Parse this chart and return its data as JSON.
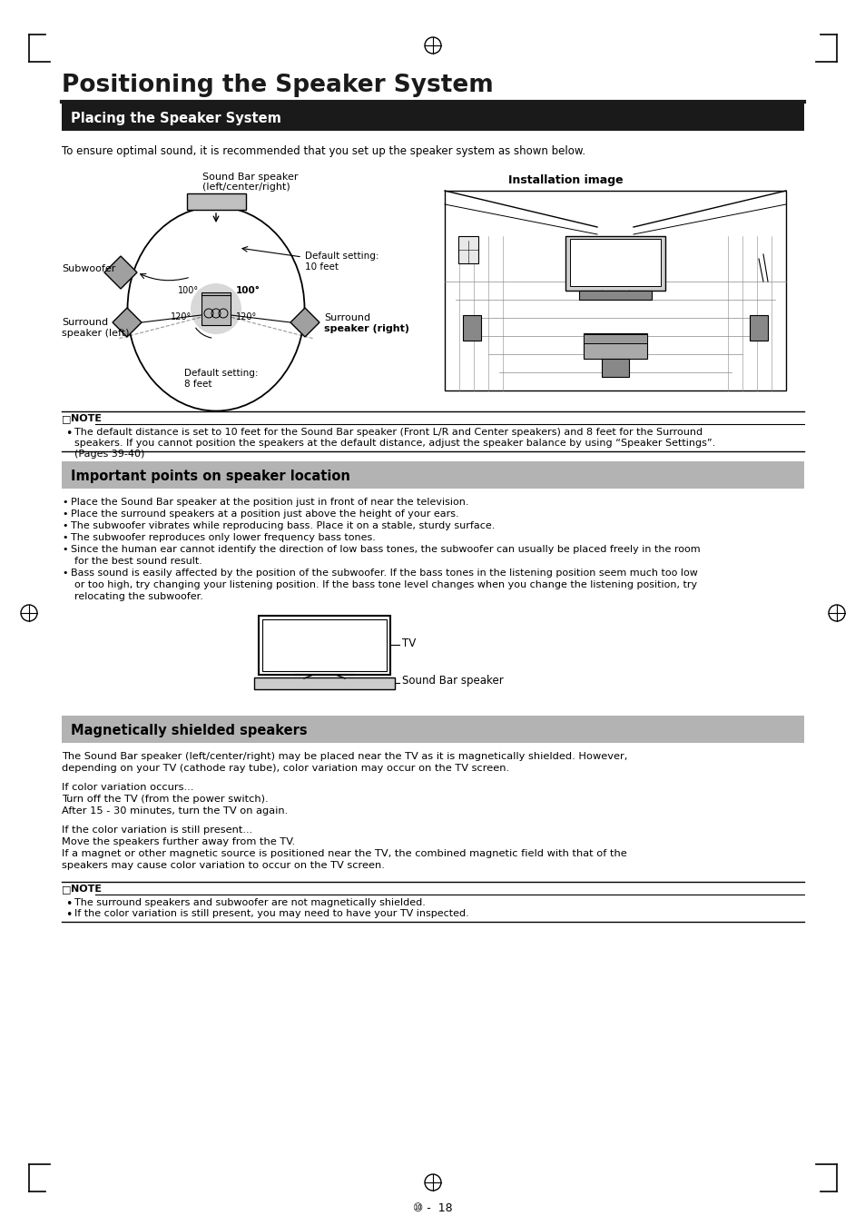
{
  "page_bg": "#ffffff",
  "main_title": "Positioning the Speaker System",
  "section1_title": "Placing the Speaker System",
  "section1_bg": "#1a1a1a",
  "section1_text_color": "#ffffff",
  "section2_title": "Important points on speaker location",
  "section2_bg": "#b3b3b3",
  "section3_title": "Magnetically shielded speakers",
  "section3_bg": "#b3b3b3",
  "intro_text": "To ensure optimal sound, it is recommended that you set up the speaker system as shown below.",
  "note1_text_line1": "The default distance is set to 10 feet for the Sound Bar speaker (Front L/R and Center speakers) and 8 feet for the Surround",
  "note1_text_line2": "speakers. If you cannot position the speakers at the default distance, adjust the speaker balance by using “Speaker Settings”.",
  "note1_text_line3": "(Pages 39-40)",
  "bullets_section2": [
    "Place the Sound Bar speaker at the position just in front of near the television.",
    "Place the surround speakers at a position just above the height of your ears.",
    "The subwoofer vibrates while reproducing bass. Place it on a stable, sturdy surface.",
    "The subwoofer reproduces only lower frequency bass tones.",
    "Since the human ear cannot identify the direction of low bass tones, the subwoofer can usually be placed freely in the room",
    "for the best sound result.",
    "Bass sound is easily affected by the position of the subwoofer. If the bass tones in the listening position seem much too low",
    "or too high, try changing your listening position. If the bass tone level changes when you change the listening position, try",
    "relocating the subwoofer."
  ],
  "bullets_section2_indent": [
    0,
    0,
    0,
    0,
    0,
    1,
    0,
    1,
    1
  ],
  "section3_para1_l1": "The Sound Bar speaker (left/center/right) may be placed near the TV as it is magnetically shielded. However,",
  "section3_para1_l2": "depending on your TV (cathode ray tube), color variation may occur on the TV screen.",
  "section3_para2_l1": "If color variation occurs...",
  "section3_para2_l2": "Turn off the TV (from the power switch).",
  "section3_para2_l3": "After 15 - 30 minutes, turn the TV on again.",
  "section3_para3_l1": "If the color variation is still present...",
  "section3_para3_l2": "Move the speakers further away from the TV.",
  "section3_para3_l3": "If a magnet or other magnetic source is positioned near the TV, the combined magnetic field with that of the",
  "section3_para3_l4": "speakers may cause color variation to occur on the TV screen.",
  "note2_bullet1": "The surround speakers and subwoofer are not magnetically shielded.",
  "note2_bullet2": "If the color variation is still present, you may need to have your TV inspected.",
  "page_number": "⑩ -  18"
}
